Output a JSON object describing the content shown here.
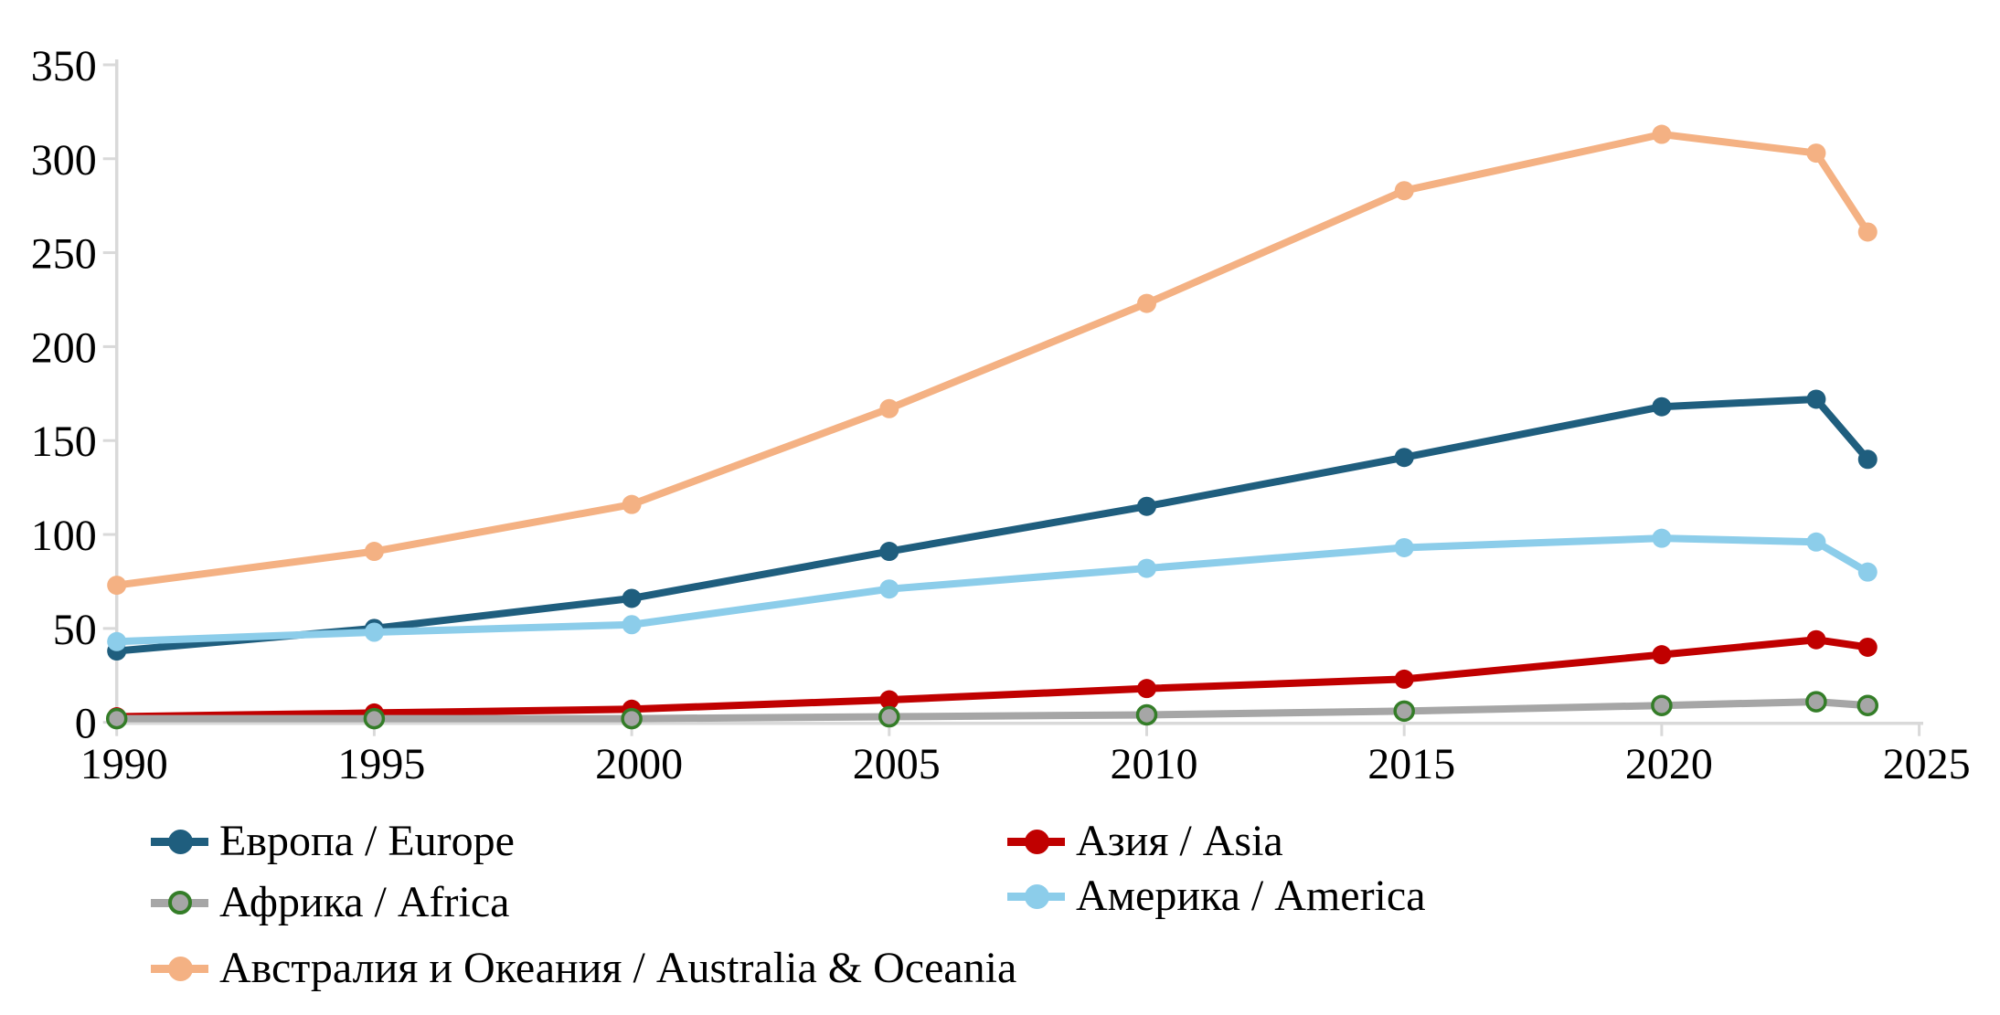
{
  "chart_data": {
    "type": "line",
    "title": "",
    "xlabel": "",
    "ylabel": "",
    "x": [
      1990,
      1995,
      2000,
      2005,
      2010,
      2015,
      2020,
      2023,
      2024
    ],
    "series": [
      {
        "name": "europe",
        "label": "Европа / Europe",
        "color": "#1F5E7E",
        "marker": "filled-circle",
        "values": [
          38,
          50,
          66,
          91,
          115,
          141,
          168,
          172,
          140
        ]
      },
      {
        "name": "asia",
        "label": "Азия / Asia",
        "color": "#C00000",
        "marker": "filled-circle",
        "values": [
          3,
          5,
          7,
          12,
          18,
          23,
          36,
          44,
          40
        ]
      },
      {
        "name": "africa",
        "label": "Африка / Africa",
        "color": "#A6A6A6",
        "marker": "edged-circle",
        "marker_edge": "#347D28",
        "values": [
          2,
          2,
          2,
          3,
          4,
          6,
          9,
          11,
          9
        ]
      },
      {
        "name": "america",
        "label": "Америка / America",
        "color": "#8CCDEA",
        "marker": "filled-circle",
        "values": [
          43,
          48,
          52,
          71,
          82,
          93,
          98,
          96,
          80
        ]
      },
      {
        "name": "australia",
        "label": "Австралия и Океания / Australia & Oceania",
        "color": "#F4B183",
        "marker": "filled-circle",
        "values": [
          73,
          91,
          116,
          167,
          223,
          283,
          313,
          303,
          261
        ]
      }
    ],
    "x_ticks": [
      1990,
      1995,
      2000,
      2005,
      2010,
      2015,
      2020,
      2025
    ],
    "y_ticks": [
      0,
      50,
      100,
      150,
      200,
      250,
      300,
      350
    ],
    "xlim": [
      1990,
      2025
    ],
    "ylim": [
      0,
      350
    ],
    "grid": false,
    "legend_position": "bottom",
    "axis_color": "#D9D9D9",
    "text_color": "#000000"
  }
}
